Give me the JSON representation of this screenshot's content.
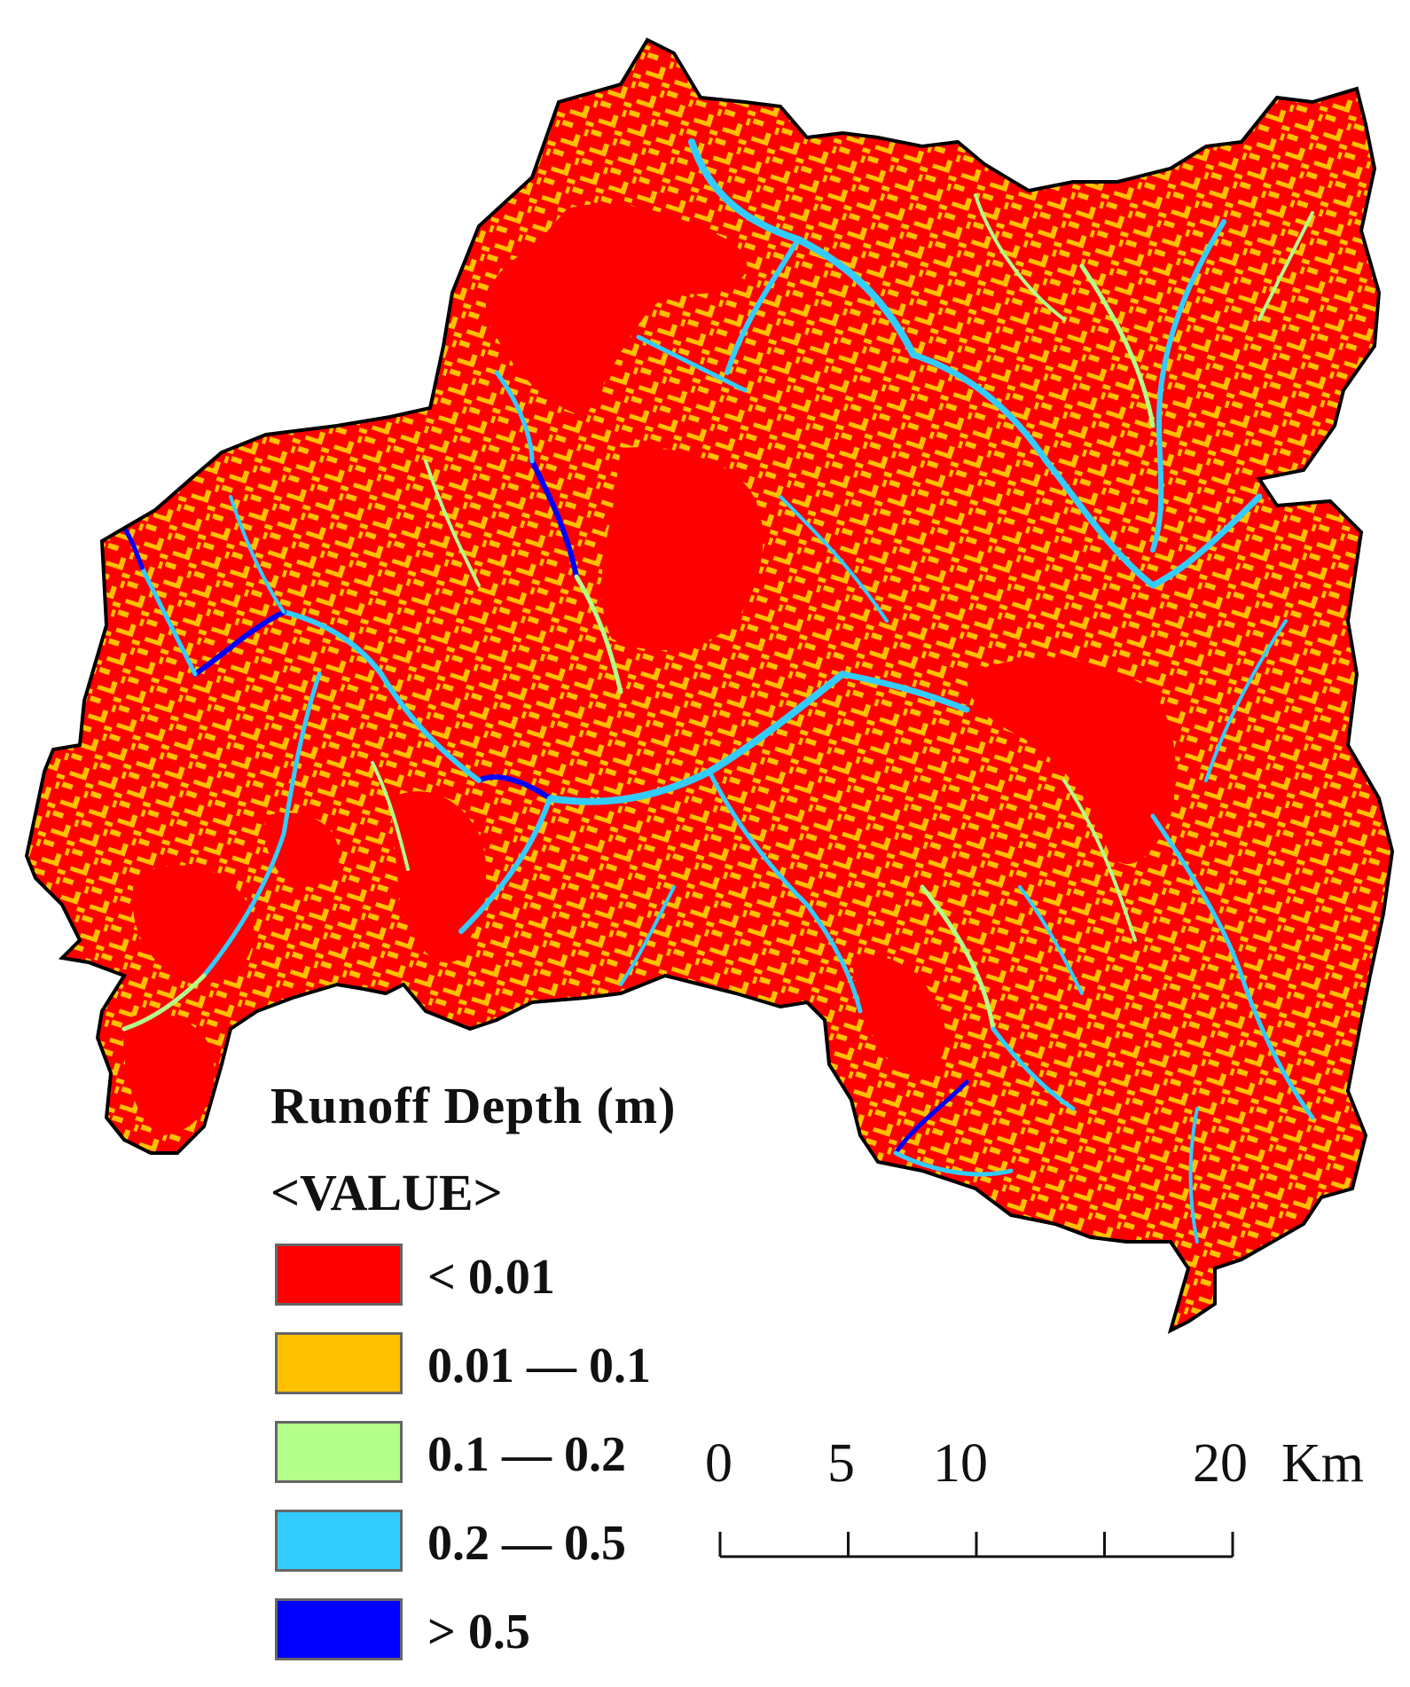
{
  "map": {
    "colors": {
      "land_base": "#ff0000",
      "mid_patch": "#ffc000",
      "channel_low": "#b3ff8c",
      "channel_mid": "#33ccff",
      "channel_high": "#0000ff",
      "outline": "#000000"
    }
  },
  "legend": {
    "title": "Runoff Depth (m)",
    "field": "<VALUE>",
    "classes": [
      {
        "label": "< 0.01",
        "color": "#ff0000"
      },
      {
        "label": "0.01 — 0.1",
        "color": "#ffc000"
      },
      {
        "label": "0.1 — 0.2",
        "color": "#b3ff8c"
      },
      {
        "label": "0.2 — 0.5",
        "color": "#33ccff"
      },
      {
        "label": "> 0.5",
        "color": "#0000ff"
      }
    ]
  },
  "scale_bar": {
    "labels": [
      "0",
      "5",
      "10",
      "20"
    ],
    "unit": "Km",
    "ticks_km": [
      0,
      5,
      10,
      15,
      20
    ]
  }
}
